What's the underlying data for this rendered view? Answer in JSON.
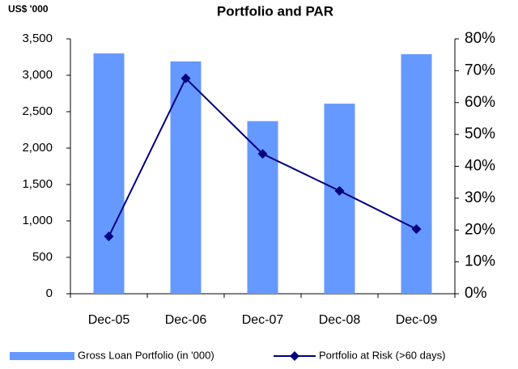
{
  "chart_data": {
    "type": "bar",
    "title": "Portfolio and PAR",
    "ylabel": "US$ '000",
    "categories": [
      "Dec-05",
      "Dec-06",
      "Dec-07",
      "Dec-08",
      "Dec-09"
    ],
    "series": [
      {
        "name": "Gross Loan Portfolio (in '000)",
        "type": "bar",
        "color": "#6699ff",
        "values": [
          3300,
          3190,
          2370,
          2610,
          3290
        ]
      },
      {
        "name": "Portfolio at Risk (>60 days)",
        "type": "line",
        "axis": "y2",
        "color": "#000080",
        "values": [
          18.0,
          67.6,
          43.9,
          32.3,
          20.3
        ]
      }
    ],
    "ylim": [
      0,
      3500
    ],
    "yticks": [
      0,
      500,
      {
        "value": 1000,
        "label": "1,000"
      },
      {
        "value": 1500,
        "label": "1,500"
      },
      {
        "value": 2000,
        "label": "2,000"
      },
      {
        "value": 2500,
        "label": "2,500"
      },
      {
        "value": 3000,
        "label": "3,000"
      },
      {
        "value": 3500,
        "label": "3,500"
      }
    ],
    "y2lim": [
      0,
      80
    ],
    "y2ticks": [
      {
        "value": 0,
        "label": "0%"
      },
      {
        "value": 10,
        "label": "10%"
      },
      {
        "value": 20,
        "label": "20%"
      },
      {
        "value": 30,
        "label": "30%"
      },
      {
        "value": 40,
        "label": "40%"
      },
      {
        "value": 50,
        "label": "50%"
      },
      {
        "value": 60,
        "label": "60%"
      },
      {
        "value": 70,
        "label": "70%"
      },
      {
        "value": 80,
        "label": "80%"
      }
    ],
    "legend": "bottom"
  }
}
